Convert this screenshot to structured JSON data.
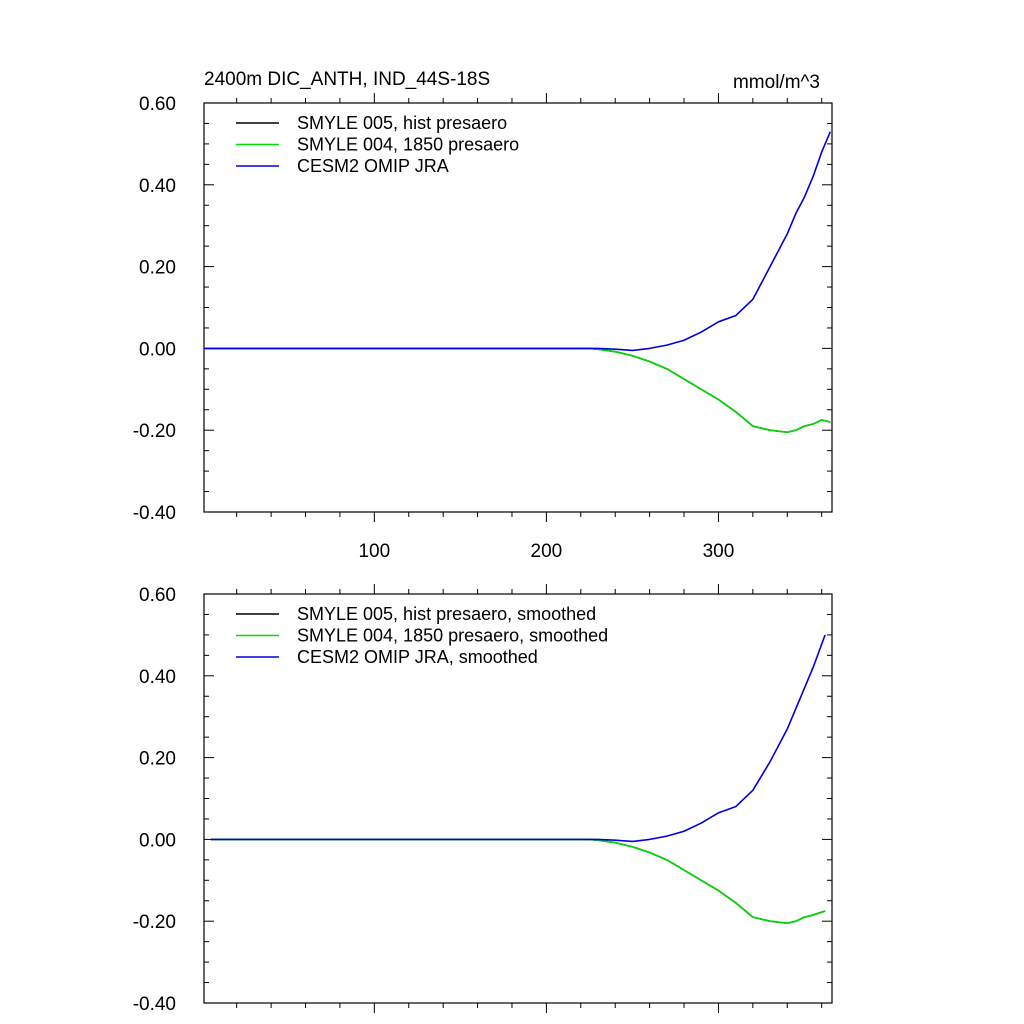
{
  "chart_data": [
    {
      "type": "line",
      "title_left": "2400m DIC_ANTH, IND_44S-18S",
      "title_right": "mmol/m^3",
      "xlim": [
        1,
        366
      ],
      "ylim": [
        -0.4,
        0.6
      ],
      "x_ticks": [
        100,
        200,
        300
      ],
      "x_tick_labels": [
        "100",
        "200",
        "300"
      ],
      "y_ticks": [
        -0.4,
        -0.2,
        0.0,
        0.2,
        0.4,
        0.6
      ],
      "y_tick_labels": [
        "-0.40",
        "-0.20",
        "0.00",
        "0.20",
        "0.40",
        "0.60"
      ],
      "legend_position": "top-left",
      "x": [
        1,
        200,
        225,
        230,
        240,
        250,
        260,
        270,
        280,
        290,
        300,
        310,
        320,
        330,
        340,
        345,
        350,
        355,
        360,
        365
      ],
      "series": [
        {
          "name": "SMYLE 005, hist presaero",
          "color": "#000000",
          "values": [
            0,
            0,
            0,
            -0.002,
            -0.008,
            -0.018,
            -0.032,
            -0.05,
            -0.075,
            -0.1,
            -0.125,
            -0.155,
            -0.19,
            -0.2,
            -0.205,
            -0.2,
            -0.19,
            -0.185,
            -0.175,
            -0.18
          ]
        },
        {
          "name": "SMYLE 004, 1850 presaero",
          "color": "#00dd00",
          "values": [
            0,
            0,
            0,
            -0.002,
            -0.008,
            -0.018,
            -0.032,
            -0.05,
            -0.075,
            -0.1,
            -0.125,
            -0.155,
            -0.19,
            -0.2,
            -0.205,
            -0.2,
            -0.19,
            -0.185,
            -0.175,
            -0.18
          ]
        },
        {
          "name": "CESM2 OMIP JRA",
          "color": "#0000dd",
          "values": [
            0,
            0,
            0,
            0,
            -0.002,
            -0.005,
            0,
            0.008,
            0.02,
            0.04,
            0.065,
            0.08,
            0.12,
            0.2,
            0.28,
            0.33,
            0.37,
            0.42,
            0.48,
            0.53
          ]
        }
      ]
    },
    {
      "type": "line",
      "xlim": [
        1,
        366
      ],
      "ylim": [
        -0.4,
        0.6
      ],
      "x_ticks": [
        100,
        200,
        300
      ],
      "y_ticks": [
        -0.4,
        -0.2,
        0.0,
        0.2,
        0.4,
        0.6
      ],
      "y_tick_labels": [
        "-0.40",
        "-0.20",
        "0.00",
        "0.20",
        "0.40",
        "0.60"
      ],
      "legend_position": "top-left",
      "x": [
        5,
        200,
        225,
        230,
        240,
        250,
        260,
        270,
        280,
        290,
        300,
        310,
        320,
        330,
        340,
        345,
        350,
        355,
        362
      ],
      "series": [
        {
          "name": "SMYLE 005, hist presaero, smoothed",
          "color": "#000000",
          "values": [
            0,
            0,
            0,
            -0.002,
            -0.008,
            -0.018,
            -0.032,
            -0.05,
            -0.075,
            -0.1,
            -0.125,
            -0.155,
            -0.19,
            -0.2,
            -0.205,
            -0.2,
            -0.19,
            -0.185,
            -0.175
          ]
        },
        {
          "name": "SMYLE 004, 1850 presaero, smoothed",
          "color": "#00dd00",
          "values": [
            0,
            0,
            0,
            -0.002,
            -0.008,
            -0.018,
            -0.032,
            -0.05,
            -0.075,
            -0.1,
            -0.125,
            -0.155,
            -0.19,
            -0.2,
            -0.205,
            -0.2,
            -0.19,
            -0.185,
            -0.175
          ]
        },
        {
          "name": "CESM2 OMIP JRA, smoothed",
          "color": "#0000dd",
          "values": [
            0,
            0,
            0,
            0,
            -0.002,
            -0.005,
            0,
            0.008,
            0.02,
            0.04,
            0.065,
            0.08,
            0.12,
            0.19,
            0.27,
            0.32,
            0.37,
            0.42,
            0.5
          ]
        }
      ]
    }
  ]
}
